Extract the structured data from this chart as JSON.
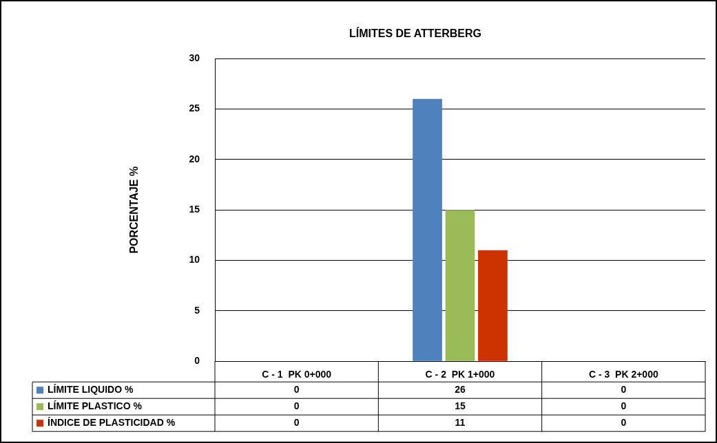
{
  "chart_data": {
    "type": "bar",
    "title": "LÍMITES DE ATTERBERG",
    "ylabel": "PORCENTAJE %",
    "categories": [
      "C - 1  PK 0+000",
      "C - 2  PK 1+000",
      "C - 3  PK 2+000"
    ],
    "series": [
      {
        "name": "LÍMITE LIQUIDO %",
        "color": "#4f81bd",
        "values": [
          0,
          26,
          0
        ]
      },
      {
        "name": "LÍMITE PLASTICO %",
        "color": "#9bbb59",
        "values": [
          0,
          15,
          0
        ]
      },
      {
        "name": "ÍNDICE DE PLASTICIDAD %",
        "color": "#cc3300",
        "values": [
          0,
          11,
          0
        ]
      }
    ],
    "ylim": [
      0,
      30
    ],
    "yticks": [
      0,
      5,
      10,
      15,
      20,
      25,
      30
    ],
    "grid": "y",
    "legend": "bottom",
    "data_labels": true
  }
}
